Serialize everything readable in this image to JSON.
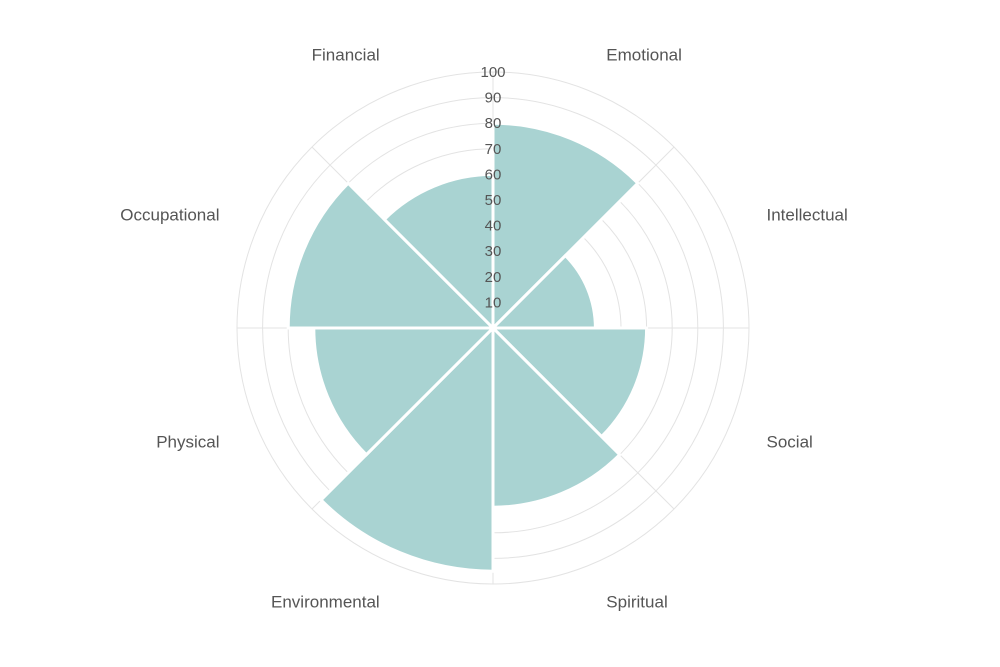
{
  "chart_data": {
    "type": "polar-area",
    "categories": [
      "Emotional",
      "Intellectual",
      "Social",
      "Spiritual",
      "Environmental",
      "Physical",
      "Occupational",
      "Financial"
    ],
    "values": [
      80,
      40,
      60,
      70,
      95,
      70,
      80,
      60
    ],
    "rlim": [
      0,
      100
    ],
    "ticks": [
      "10",
      "20",
      "30",
      "40",
      "50",
      "60",
      "70",
      "80",
      "90",
      "100"
    ],
    "tick_values": [
      10,
      20,
      30,
      40,
      50,
      60,
      70,
      80,
      90,
      100
    ],
    "fill_color": "#a9d3d2",
    "grid_color": "#e3e3e3",
    "label_color": "#555555",
    "grid": true,
    "legend": "none"
  }
}
